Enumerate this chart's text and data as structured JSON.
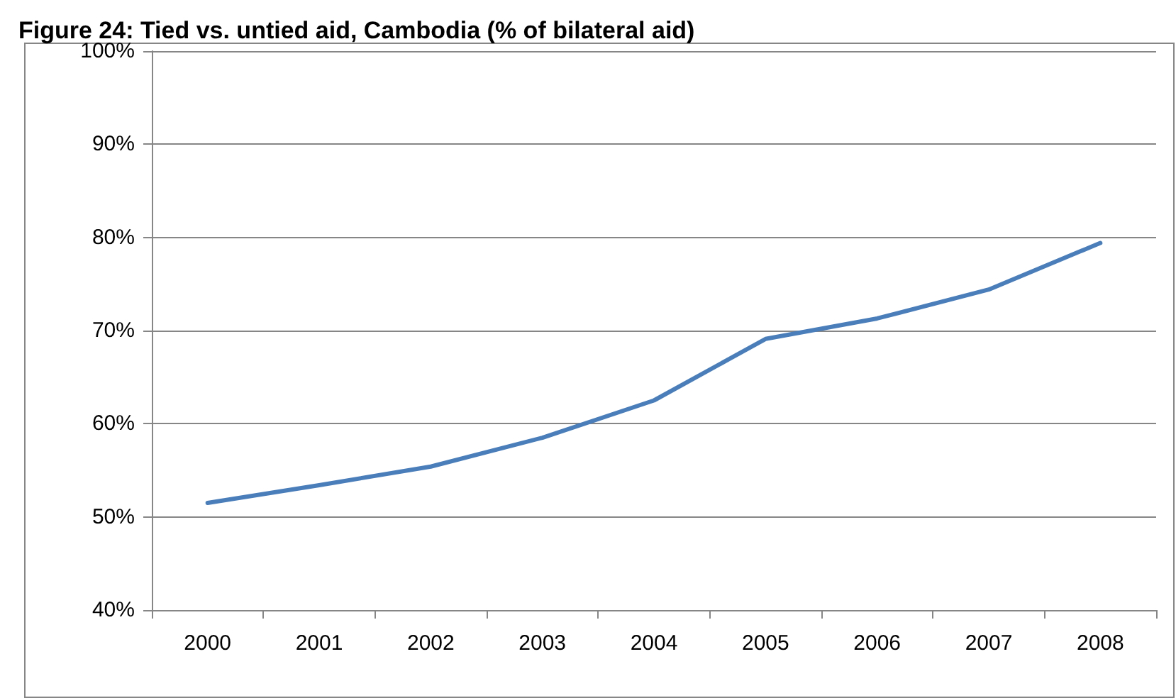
{
  "chart_data": {
    "type": "line",
    "title": "Figure 24: Tied vs. untied aid, Cambodia (% of bilateral aid)",
    "categories": [
      "2000",
      "2001",
      "2002",
      "2003",
      "2004",
      "2005",
      "2006",
      "2007",
      "2008"
    ],
    "series": [
      {
        "color": "#4a7ebb",
        "values": [
          51.5,
          53.4,
          55.4,
          58.5,
          62.5,
          69.1,
          71.3,
          74.4,
          79.4
        ]
      }
    ],
    "ylim": [
      40,
      100
    ],
    "yticks": [
      {
        "value": 40,
        "label": "40%"
      },
      {
        "value": 50,
        "label": "50%"
      },
      {
        "value": 60,
        "label": "60%"
      },
      {
        "value": 70,
        "label": "70%"
      },
      {
        "value": 80,
        "label": "80%"
      },
      {
        "value": 90,
        "label": "90%"
      },
      {
        "value": 100,
        "label": "100%"
      }
    ],
    "grid": "y",
    "marker": "none",
    "line_style": "solid"
  }
}
